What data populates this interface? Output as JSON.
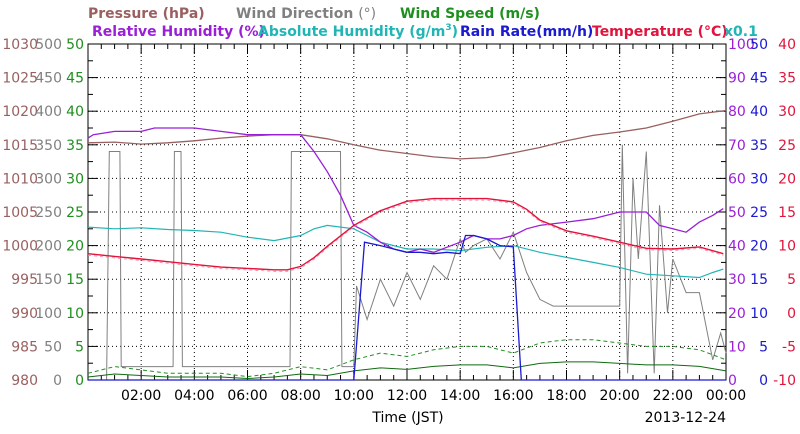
{
  "chart_data": {
    "type": "line",
    "date": "2013-12-24",
    "xlabel": "Time (JST)",
    "xticks": [
      "02:00",
      "04:00",
      "06:00",
      "08:00",
      "10:00",
      "12:00",
      "14:00",
      "16:00",
      "18:00",
      "20:00",
      "22:00",
      "00:00"
    ],
    "xlim_hours": [
      0,
      24
    ],
    "right_scale_note": "x0.1",
    "legend": {
      "row1": [
        {
          "key": "pressure",
          "label": "Pressure (hPa)",
          "color": "#9a6060"
        },
        {
          "key": "wind_dir",
          "label": "Wind Direction",
          "unit": "(°)",
          "color": "#808080"
        },
        {
          "key": "wind_speed",
          "label": "Wind Speed (m/s)",
          "color": "#1f8f1f"
        }
      ],
      "row2": [
        {
          "key": "rh",
          "label": "Relative Humidity (%)",
          "color": "#9a1fd6"
        },
        {
          "key": "abs_hum",
          "label": "Absolute Humidity (g/m",
          "sup": "3",
          "tail": ")",
          "color": "#22b5b5"
        },
        {
          "key": "rain",
          "label": "Rain Rate(mm/h)",
          "color": "#1a1ad0"
        },
        {
          "key": "temp",
          "label": "Temperature",
          "unit": "(°C)",
          "color": "#e0143c"
        }
      ]
    },
    "axes": {
      "pressure": {
        "ticks": [
          "1030",
          "1025",
          "1020",
          "1015",
          "1010",
          "1005",
          "1000",
          "995",
          "990",
          "985",
          "980"
        ],
        "ylim": [
          980,
          1030
        ],
        "color": "#9a6060"
      },
      "wind_dir": {
        "ticks": [
          "500",
          "450",
          "400",
          "350",
          "300",
          "250",
          "200",
          "150",
          "100",
          "50",
          "0"
        ],
        "ylim": [
          0,
          500
        ],
        "color": "#808080"
      },
      "wind_speed": {
        "ticks": [
          "50",
          "45",
          "40",
          "35",
          "30",
          "25",
          "20",
          "15",
          "10",
          "5",
          "0"
        ],
        "ylim": [
          0,
          50
        ],
        "color": "#1f8f1f"
      },
      "rh": {
        "ticks": [
          "100",
          "90",
          "80",
          "70",
          "60",
          "50",
          "40",
          "30",
          "20",
          "10",
          "0"
        ],
        "ylim": [
          0,
          100
        ],
        "color": "#9a1fd6"
      },
      "rain": {
        "ticks": [
          "50",
          "45",
          "40",
          "35",
          "30",
          "25",
          "20",
          "15",
          "10",
          "5",
          "0"
        ],
        "ylim": [
          0,
          50
        ],
        "color": "#1a1ad0"
      },
      "temp": {
        "ticks": [
          "40",
          "35",
          "30",
          "25",
          "20",
          "15",
          "10",
          "5",
          "0",
          "-5",
          "-10"
        ],
        "ylim": [
          -10,
          40
        ],
        "color": "#e0143c"
      }
    },
    "series": [
      {
        "key": "pressure",
        "x": [
          0,
          1,
          2,
          3,
          4,
          5,
          6,
          7,
          8,
          9,
          10,
          11,
          12,
          13,
          14,
          15,
          16,
          17,
          18,
          19,
          20,
          21,
          22,
          23,
          24
        ],
        "y": [
          1015.3,
          1015.4,
          1015.1,
          1015.3,
          1015.6,
          1016,
          1016.3,
          1016.5,
          1016.5,
          1015.9,
          1015,
          1014.2,
          1013.7,
          1013.2,
          1012.9,
          1013.1,
          1013.8,
          1014.6,
          1015.6,
          1016.4,
          1016.9,
          1017.5,
          1018.5,
          1019.6,
          1020.1
        ]
      },
      {
        "key": "temp",
        "x": [
          0,
          1,
          2,
          3,
          4,
          5,
          6,
          7,
          7.5,
          8,
          8.5,
          9,
          10,
          11,
          12,
          13,
          14,
          15,
          16,
          16.5,
          17,
          18,
          19,
          20,
          21,
          22,
          23,
          23.9
        ],
        "y": [
          8.8,
          8.4,
          8,
          7.6,
          7.2,
          6.8,
          6.6,
          6.4,
          6.4,
          6.9,
          8.2,
          9.9,
          13,
          15.2,
          16.6,
          17,
          17,
          17,
          16.5,
          15.4,
          13.8,
          12.2,
          11.4,
          10.5,
          9.6,
          9.5,
          9.8,
          8.8
        ]
      },
      {
        "key": "rh",
        "x": [
          0,
          0.2,
          1,
          2,
          2.5,
          3,
          4,
          5,
          6,
          7,
          8,
          8.5,
          9,
          9.5,
          10,
          10.5,
          11,
          11.5,
          12,
          12.5,
          13,
          14,
          14.5,
          15,
          15.5,
          16,
          16.5,
          17,
          18,
          19,
          20,
          20.5,
          21,
          21.5,
          22,
          22.5,
          23,
          23.5,
          23.9
        ],
        "y": [
          72,
          73,
          74,
          74,
          75,
          75,
          75,
          74,
          73,
          73,
          73,
          68,
          62,
          55,
          46,
          44,
          41,
          39,
          38,
          39,
          38,
          41,
          43,
          42,
          42,
          43,
          45,
          46,
          47,
          48,
          50,
          50,
          50,
          46,
          45,
          44,
          47,
          49,
          51
        ]
      },
      {
        "key": "abs_hum",
        "x": [
          0,
          1,
          2,
          3,
          4,
          5,
          6,
          7,
          8,
          8.5,
          9,
          10,
          10.5,
          11,
          12,
          13,
          14,
          15,
          16,
          17,
          18,
          19,
          20,
          21,
          22,
          23,
          23.5,
          23.9
        ],
        "y": [
          45.5,
          45,
          45.3,
          44.8,
          44.5,
          44,
          42.5,
          41.5,
          43,
          45,
          46,
          45,
          43,
          41,
          39,
          39,
          38.5,
          39.5,
          40,
          38,
          36.5,
          35,
          33.5,
          31.5,
          31,
          30.5,
          32,
          33
        ]
      },
      {
        "key": "rain",
        "x": [
          0,
          10,
          10.4,
          11,
          11.5,
          12,
          12.5,
          13,
          13.5,
          14,
          14.2,
          14.5,
          15,
          15.5,
          16,
          16.3,
          24
        ],
        "y": [
          0,
          0,
          20.5,
          20,
          19.5,
          19,
          19,
          18.8,
          19,
          18.8,
          21.5,
          21.5,
          21,
          20,
          19.8,
          0,
          0
        ]
      },
      {
        "key": "wind_dir",
        "x": [
          0,
          0.7,
          0.8,
          1.2,
          1.25,
          2,
          3.2,
          3.25,
          3.5,
          3.55,
          4,
          5,
          6,
          7,
          7.6,
          7.65,
          8,
          9,
          9.5,
          9.55,
          10,
          10.1,
          10.5,
          11,
          11.5,
          12,
          12.5,
          13,
          13.5,
          14,
          14.2,
          14.5,
          15,
          15.5,
          16,
          16.5,
          17,
          17.5,
          18,
          19,
          20,
          20.1,
          20.3,
          20.5,
          20.7,
          21,
          21.3,
          21.5,
          21.8,
          22,
          22.5,
          23,
          23.5,
          23.8,
          24
        ],
        "y": [
          0,
          0,
          340,
          340,
          20,
          20,
          20,
          340,
          340,
          20,
          20,
          20,
          20,
          20,
          20,
          340,
          340,
          340,
          340,
          20,
          20,
          140,
          90,
          150,
          110,
          160,
          120,
          170,
          150,
          210,
          190,
          200,
          210,
          180,
          220,
          160,
          120,
          110,
          110,
          110,
          110,
          350,
          10,
          300,
          180,
          340,
          10,
          260,
          100,
          180,
          130,
          130,
          30,
          70,
          40
        ]
      },
      {
        "key": "wind_speed",
        "x": [
          0,
          1,
          2,
          3,
          4,
          5,
          6,
          7,
          8,
          9,
          10,
          11,
          12,
          13,
          14,
          15,
          16,
          17,
          18,
          19,
          20,
          21,
          22,
          23,
          24
        ],
        "y": [
          1,
          2,
          1.5,
          1,
          1,
          1,
          0.5,
          1,
          2,
          1.5,
          3,
          4,
          3.5,
          4.5,
          5,
          5,
          4,
          5.5,
          6,
          6,
          5.5,
          5,
          5,
          4.5,
          3
        ]
      }
    ]
  }
}
